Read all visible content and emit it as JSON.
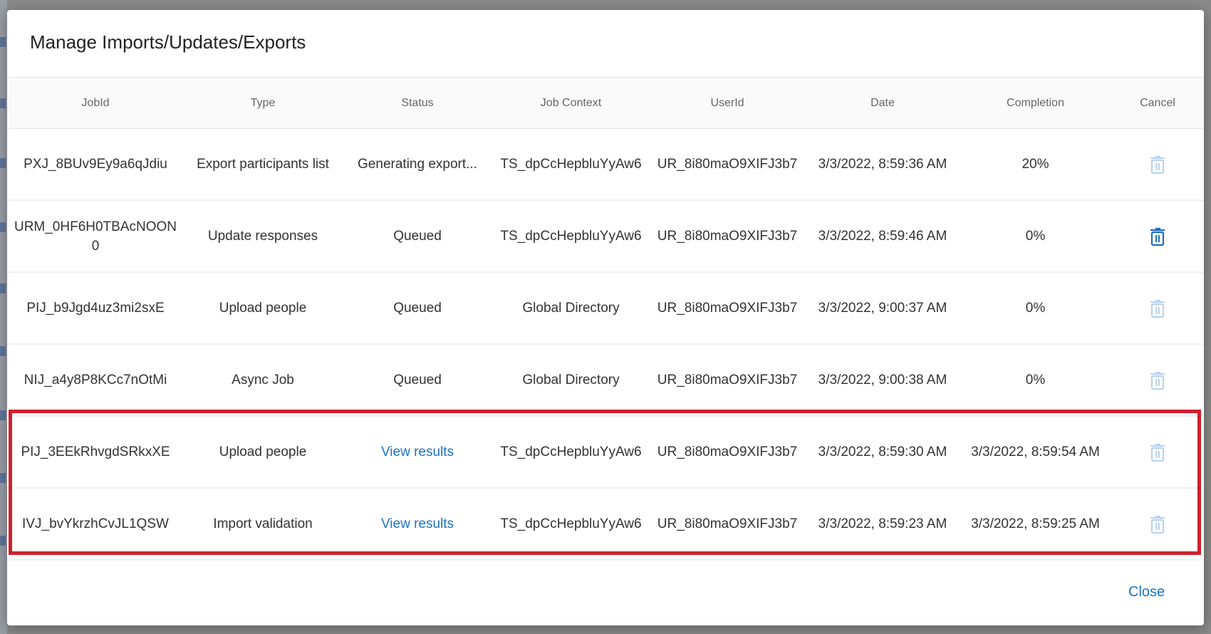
{
  "dialog": {
    "title": "Manage Imports/Updates/Exports",
    "close_label": "Close"
  },
  "table": {
    "headers": [
      "JobId",
      "Type",
      "Status",
      "Job Context",
      "UserId",
      "Date",
      "Completion",
      "Cancel"
    ],
    "rows": [
      {
        "job_id": "PXJ_8BUv9Ey9a6qJdiu",
        "type": "Export participants list",
        "status": "Generating export...",
        "status_is_link": false,
        "context": "TS_dpCcHepbluYyAw6",
        "user_id": "UR_8i80maO9XIFJ3b7",
        "date": "3/3/2022, 8:59:36 AM",
        "completion": "20%",
        "cancel_enabled": false
      },
      {
        "job_id": "URM_0HF6H0TBAcNOON0",
        "type": "Update responses",
        "status": "Queued",
        "status_is_link": false,
        "context": "TS_dpCcHepbluYyAw6",
        "user_id": "UR_8i80maO9XIFJ3b7",
        "date": "3/3/2022, 8:59:46 AM",
        "completion": "0%",
        "cancel_enabled": true
      },
      {
        "job_id": "PIJ_b9Jgd4uz3mi2sxE",
        "type": "Upload people",
        "status": "Queued",
        "status_is_link": false,
        "context": "Global Directory",
        "user_id": "UR_8i80maO9XIFJ3b7",
        "date": "3/3/2022, 9:00:37 AM",
        "completion": "0%",
        "cancel_enabled": false
      },
      {
        "job_id": "NIJ_a4y8P8KCc7nOtMi",
        "type": "Async Job",
        "status": "Queued",
        "status_is_link": false,
        "context": "Global Directory",
        "user_id": "UR_8i80maO9XIFJ3b7",
        "date": "3/3/2022, 9:00:38 AM",
        "completion": "0%",
        "cancel_enabled": false
      },
      {
        "job_id": "PIJ_3EEkRhvgdSRkxXE",
        "type": "Upload people",
        "status": "View results",
        "status_is_link": true,
        "context": "TS_dpCcHepbluYyAw6",
        "user_id": "UR_8i80maO9XIFJ3b7",
        "date": "3/3/2022, 8:59:30 AM",
        "completion": "3/3/2022, 8:59:54 AM",
        "cancel_enabled": false
      },
      {
        "job_id": "IVJ_bvYkrzhCvJL1QSW",
        "type": "Import validation",
        "status": "View results",
        "status_is_link": true,
        "context": "TS_dpCcHepbluYyAw6",
        "user_id": "UR_8i80maO9XIFJ3b7",
        "date": "3/3/2022, 8:59:23 AM",
        "completion": "3/3/2022, 8:59:25 AM",
        "cancel_enabled": false
      }
    ]
  },
  "colors": {
    "link": "#1a73c8",
    "trash_enabled": "#1a6fc4",
    "trash_disabled": "#b9d3ef",
    "highlight_border": "#d0202e"
  },
  "icons": {
    "cancel": "trash-icon"
  }
}
